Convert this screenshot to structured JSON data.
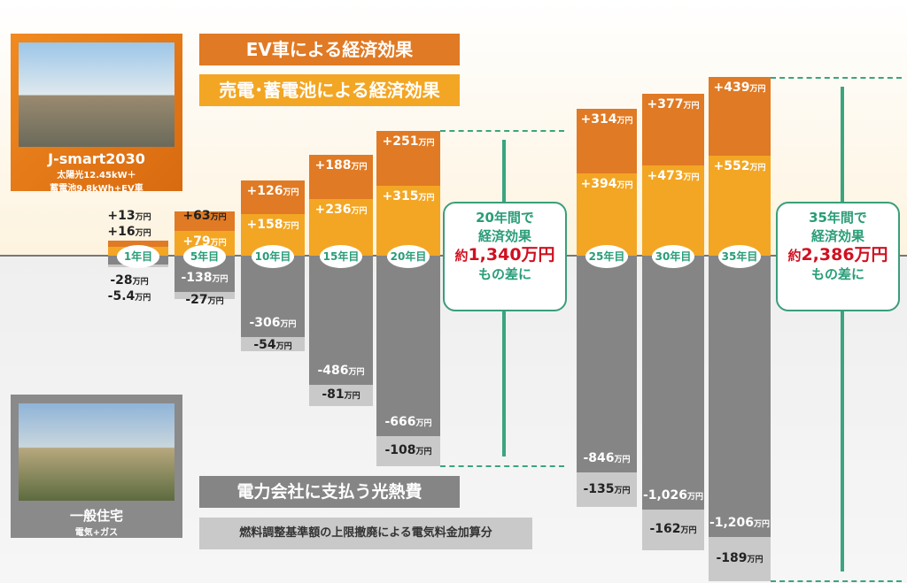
{
  "legend": {
    "ev": "EV車による経済効果",
    "solar": "売電･蓄電池による経済効果",
    "utility": "電力会社に支払う光熱費",
    "fuel": "燃料調整基準額の上限撤廃による電気料金加算分"
  },
  "smart_house": {
    "name": "J-smart2030",
    "spec1": "太陽光12.45kW＋",
    "spec2": "蓄電池9.8kWh+EV車"
  },
  "normal_house": {
    "name": "一般住宅",
    "spec": "電気+ガス"
  },
  "unit": "万円",
  "colors": {
    "ev": "#e07a24",
    "solar": "#f3a623",
    "utility": "#858585",
    "fuel": "#c9c9c9",
    "accent": "#3aa57e",
    "highlight": "#d01020"
  },
  "notes": [
    {
      "l1": "20年間で",
      "l2": "経済効果",
      "pre": "約",
      "amount": "1,340万円",
      "l4": "もの差に"
    },
    {
      "l1": "35年間で",
      "l2": "経済効果",
      "pre": "約",
      "amount": "2,386万円",
      "l4": "もの差に"
    }
  ],
  "chart_data": {
    "type": "bar",
    "stacked": true,
    "categories": [
      "1年目",
      "5年目",
      "10年目",
      "15年目",
      "20年目",
      "25年目",
      "30年目",
      "35年目"
    ],
    "series": [
      {
        "name": "売電･蓄電池による経済効果",
        "values": [
          16,
          79,
          158,
          236,
          315,
          394,
          473,
          552
        ],
        "labels": [
          "+16",
          "+79",
          "+158",
          "+236",
          "+315",
          "+394",
          "+473",
          "+552"
        ]
      },
      {
        "name": "EV車による経済効果",
        "values": [
          13,
          63,
          126,
          188,
          251,
          314,
          377,
          439
        ],
        "labels": [
          "+13",
          "+63",
          "+126",
          "+188",
          "+251",
          "+314",
          "+377",
          "+439"
        ]
      },
      {
        "name": "電力会社に支払う光熱費",
        "values": [
          -28,
          -138,
          -306,
          -486,
          -666,
          -846,
          -1026,
          -1206
        ],
        "labels": [
          "-28",
          "-138",
          "-306",
          "-486",
          "-666",
          "-846",
          "-1,026",
          "-1,206"
        ]
      },
      {
        "name": "燃料調整基準額の上限撤廃による電気料金加算分",
        "values": [
          -5.4,
          -27,
          -54,
          -81,
          -108,
          -135,
          -162,
          -189
        ],
        "labels": [
          "-5.4",
          "-27",
          "-54",
          "-81",
          "-108",
          "-135",
          "-162",
          "-189"
        ]
      }
    ]
  }
}
